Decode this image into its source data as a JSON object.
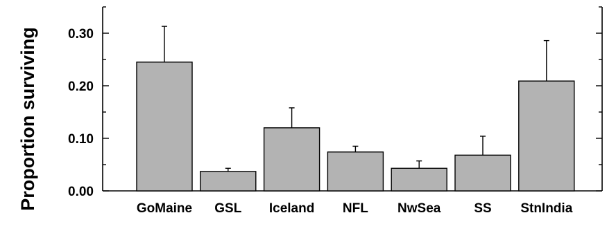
{
  "chart_data": {
    "type": "bar",
    "title": "",
    "xlabel": "",
    "ylabel": "Proportion surviving",
    "categories": [
      "GoMaine",
      "GSL",
      "Iceland",
      "NFL",
      "NwSea",
      "SS",
      "StnIndia"
    ],
    "values": [
      0.245,
      0.037,
      0.12,
      0.074,
      0.043,
      0.068,
      0.209
    ],
    "errors": [
      0.068,
      0.006,
      0.038,
      0.011,
      0.014,
      0.036,
      0.077
    ],
    "ylim": [
      0,
      0.35
    ],
    "yticks": [
      "0.00",
      "0.10",
      "0.20",
      "0.30"
    ],
    "grid": false,
    "bar_color": "#b3b3b3",
    "error_bar_style": "upper whisker only"
  }
}
